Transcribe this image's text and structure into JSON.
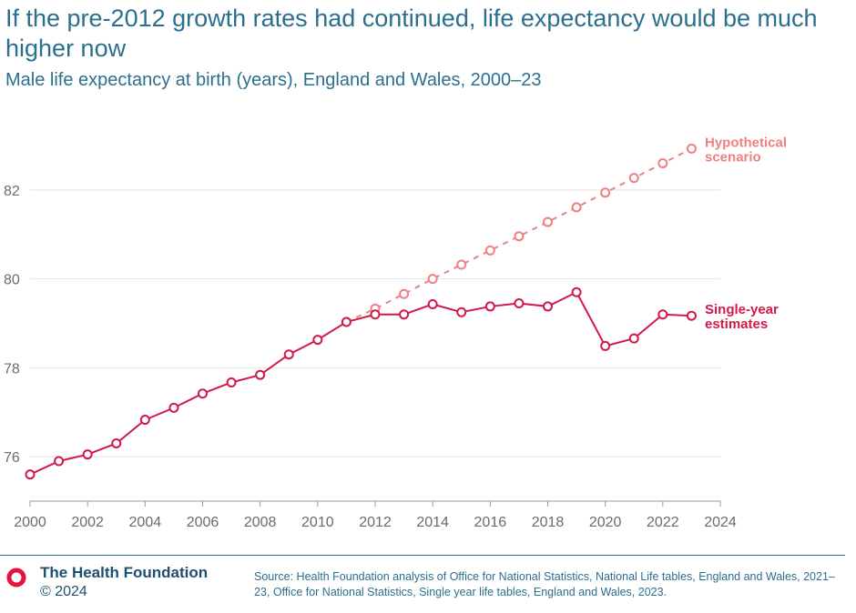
{
  "header": {
    "title": "If the pre-2012 growth rates had continued, life expectancy would be much higher now",
    "subtitle": "Male life expectancy at birth (years), England and Wales, 2000–23"
  },
  "chart_data": {
    "type": "line",
    "title": "If the pre-2012 growth rates had continued, life expectancy would be much higher now",
    "subtitle": "Male life expectancy at birth (years), England and Wales, 2000–23",
    "xlabel": "",
    "ylabel": "",
    "xlim": [
      2000,
      2024
    ],
    "ylim": [
      75,
      83
    ],
    "x_ticks": [
      2000,
      2002,
      2004,
      2006,
      2008,
      2010,
      2012,
      2014,
      2016,
      2018,
      2020,
      2022,
      2024
    ],
    "y_ticks": [
      76,
      78,
      80,
      82
    ],
    "grid": true,
    "series": [
      {
        "name": "Single-year estimates",
        "label_lines": [
          "Single-year",
          "estimates"
        ],
        "color": "#d11a4a",
        "style": "solid",
        "x": [
          2000,
          2001,
          2002,
          2003,
          2004,
          2005,
          2006,
          2007,
          2008,
          2009,
          2010,
          2011,
          2012,
          2013,
          2014,
          2015,
          2016,
          2017,
          2018,
          2019,
          2020,
          2021,
          2022,
          2023
        ],
        "values": [
          75.6,
          75.9,
          76.05,
          76.3,
          76.83,
          77.1,
          77.42,
          77.67,
          77.84,
          78.3,
          78.63,
          79.03,
          79.2,
          79.2,
          79.43,
          79.25,
          79.38,
          79.45,
          79.38,
          79.7,
          78.49,
          78.66,
          79.2,
          79.17
        ]
      },
      {
        "name": "Hypothetical scenario",
        "label_lines": [
          "Hypothetical",
          "scenario"
        ],
        "color": "#f07f7f",
        "style": "dashed",
        "x": [
          2011,
          2012,
          2013,
          2014,
          2015,
          2016,
          2017,
          2018,
          2019,
          2020,
          2021,
          2022,
          2023
        ],
        "values": [
          79.03,
          79.33,
          79.66,
          80.0,
          80.32,
          80.64,
          80.96,
          81.28,
          81.61,
          81.94,
          82.27,
          82.6,
          82.93
        ]
      }
    ]
  },
  "footer": {
    "organisation": "The Health Foundation",
    "copyright": "© 2024",
    "source": "Source: Health Foundation analysis of Office for National Statistics, National Life tables, England and Wales, 2021–23, Office for National Statistics, Single year life tables, England and Wales, 2023."
  }
}
